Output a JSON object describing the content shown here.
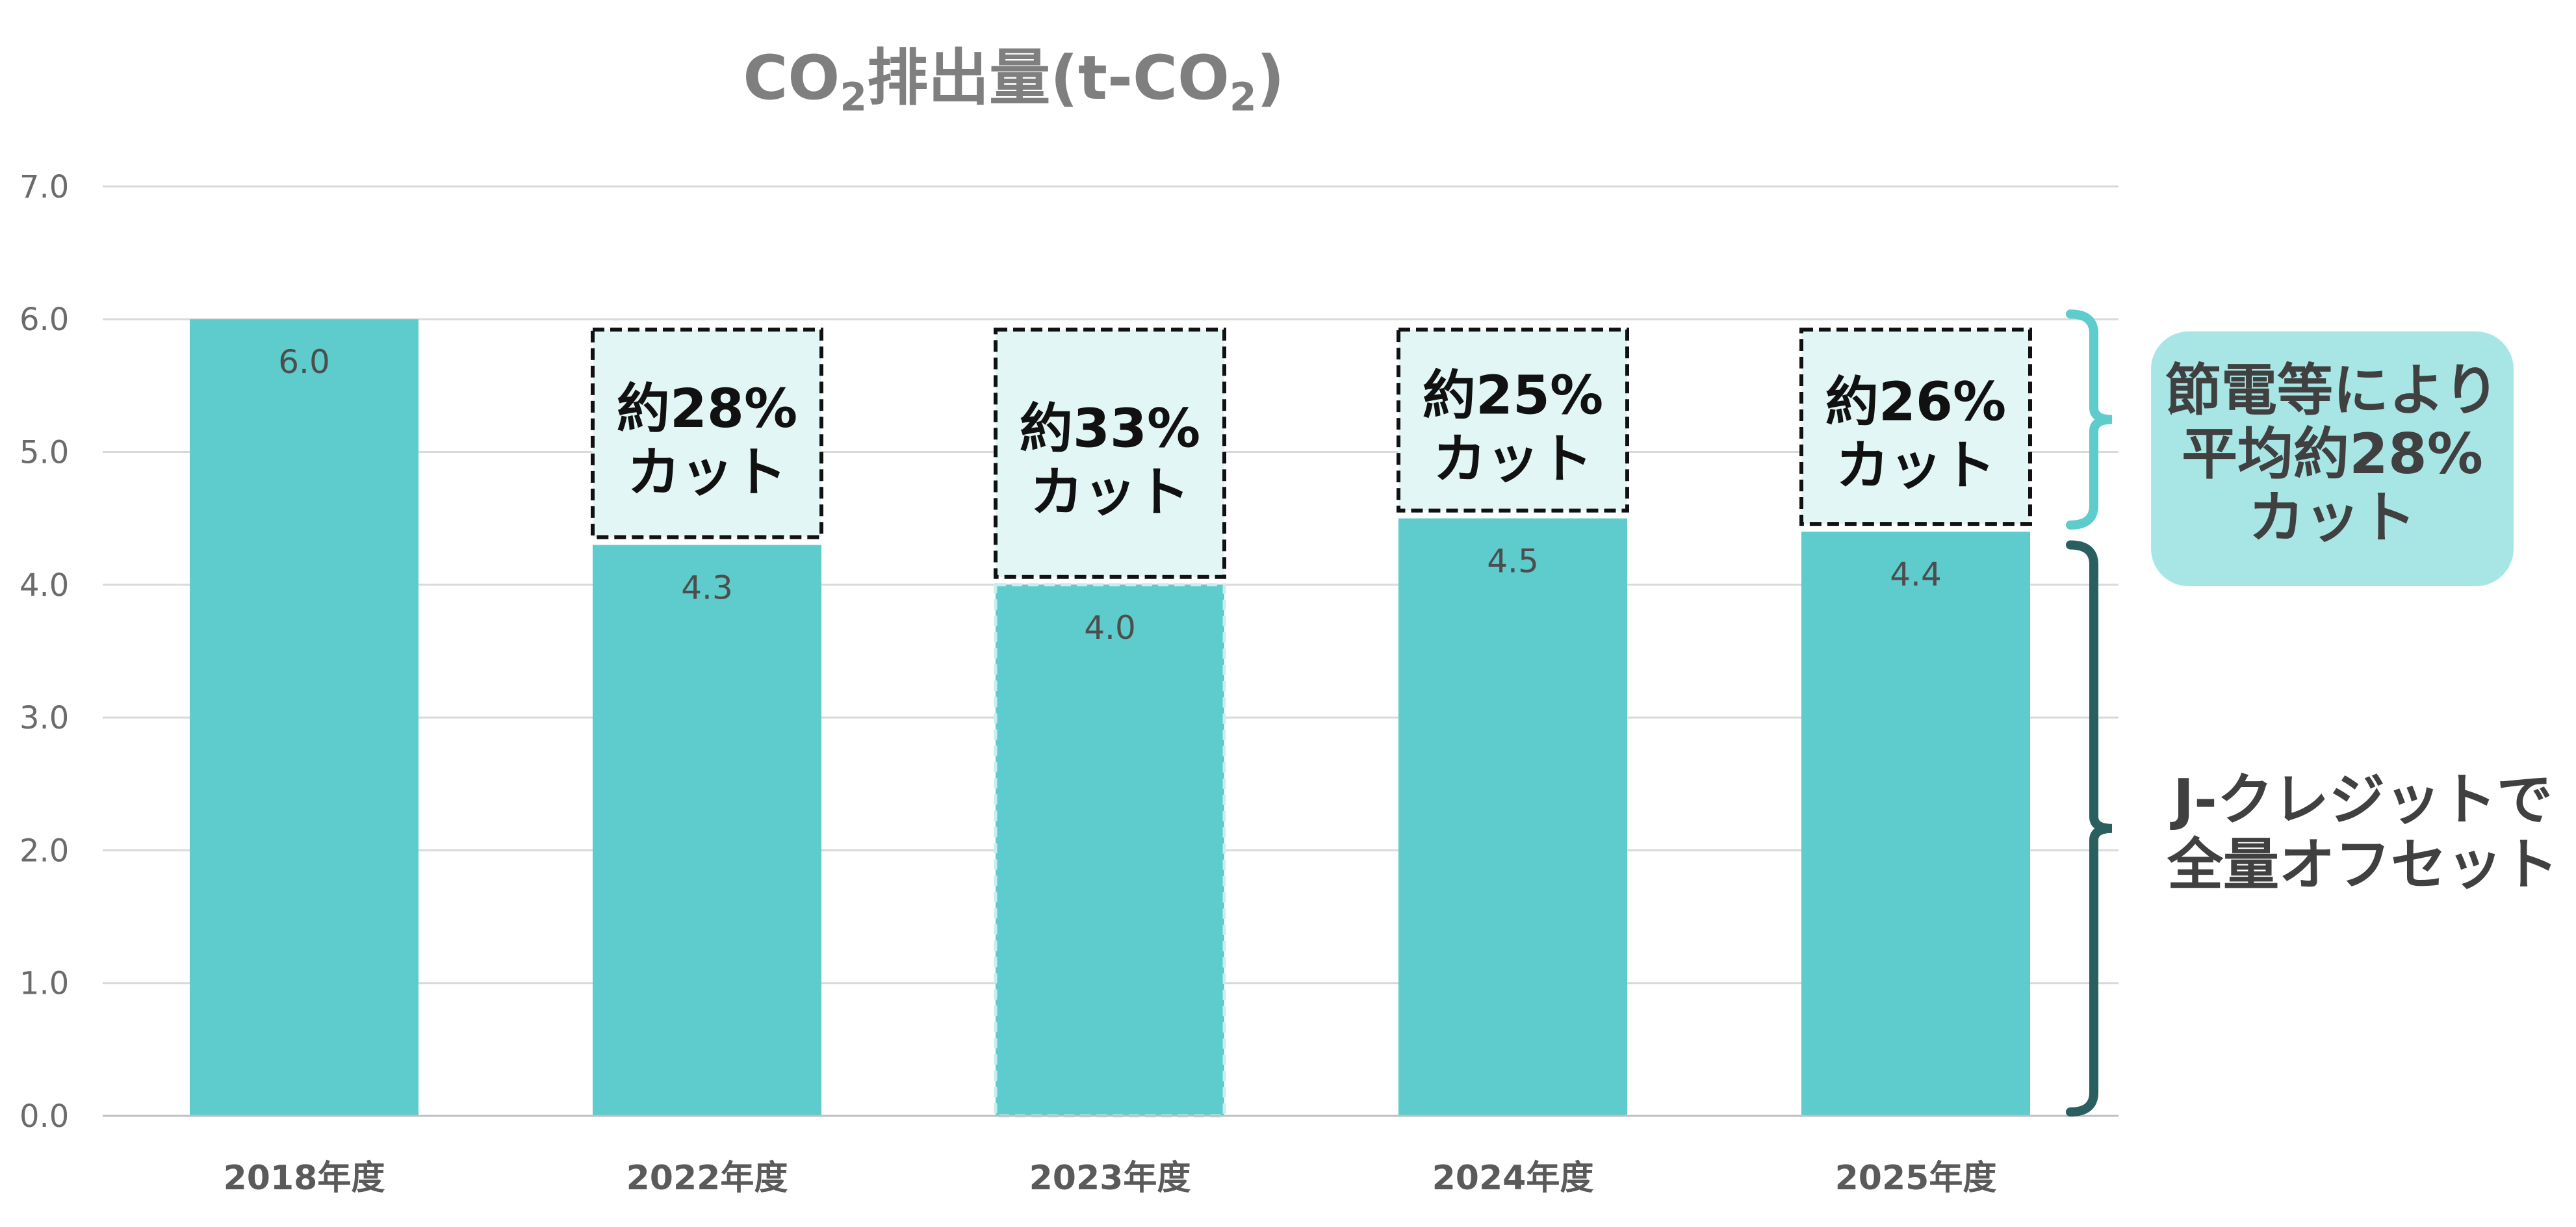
{
  "chart_data": {
    "type": "bar",
    "title": {
      "prefix": "CO",
      "sub": "2",
      "middle": "排出量(t-CO",
      "sub2": "2",
      "suffix": ")"
    },
    "categories": [
      "2018年度",
      "2022年度",
      "2023年度",
      "2024年度",
      "2025年度"
    ],
    "values": [
      6.0,
      4.3,
      4.0,
      4.5,
      4.4
    ],
    "value_labels": [
      "6.0",
      "4.3",
      "4.0",
      "4.5",
      "4.4"
    ],
    "estimated": [
      false,
      false,
      true,
      false,
      false
    ],
    "ylim": [
      0,
      7
    ],
    "y_ticks": [
      "0.0",
      "1.0",
      "2.0",
      "3.0",
      "4.0",
      "5.0",
      "6.0",
      "7.0"
    ],
    "grid": true,
    "xlabel": "",
    "ylabel": "",
    "reduction_boxes": [
      {
        "category": "2022年度",
        "from": 4.3,
        "to": 6.0,
        "line1": "約28%",
        "line2": "カット"
      },
      {
        "category": "2023年度",
        "from": 4.0,
        "to": 6.0,
        "line1": "約33%",
        "line2": "カット"
      },
      {
        "category": "2024年度",
        "from": 4.5,
        "to": 6.0,
        "line1": "約25%",
        "line2": "カット"
      },
      {
        "category": "2025年度",
        "from": 4.4,
        "to": 6.0,
        "line1": "約26%",
        "line2": "カット"
      }
    ],
    "annotations": {
      "saving": {
        "lines": [
          "節電等により",
          "平均約28%",
          "カット"
        ]
      },
      "offset": {
        "lines": [
          "J-クレジットで",
          "全量オフセット"
        ]
      }
    },
    "colors": {
      "bar": "#5ecbcc",
      "grid": "#d9d9d9",
      "cut_box_fill": "#e2f6f5",
      "saving_badge": "#a8e6e6",
      "saving_brace": "#5ecbcc",
      "offset_brace": "#2a5f60"
    }
  }
}
